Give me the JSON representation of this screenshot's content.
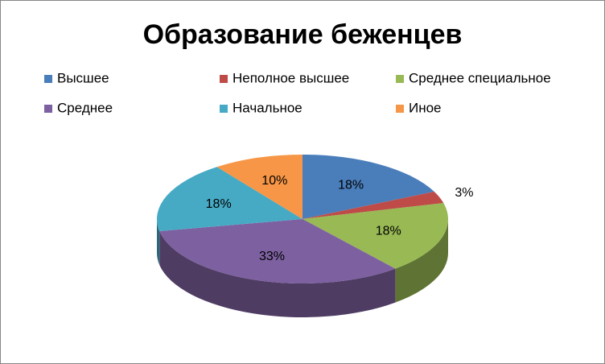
{
  "chart_data": {
    "type": "pie3d",
    "title": "Образование беженцев",
    "categories": [
      "Высшее",
      "Неполное высшее",
      "Среднее специальное",
      "Среднее",
      "Начальное",
      "Иное"
    ],
    "values": [
      18,
      3,
      18,
      33,
      18,
      10
    ],
    "value_labels": [
      "18%",
      "3%",
      "18%",
      "33%",
      "18%",
      "10%"
    ],
    "colors": [
      "#4a7ebb",
      "#be4b48",
      "#98b954",
      "#7d60a0",
      "#46aac5",
      "#f79646"
    ]
  }
}
